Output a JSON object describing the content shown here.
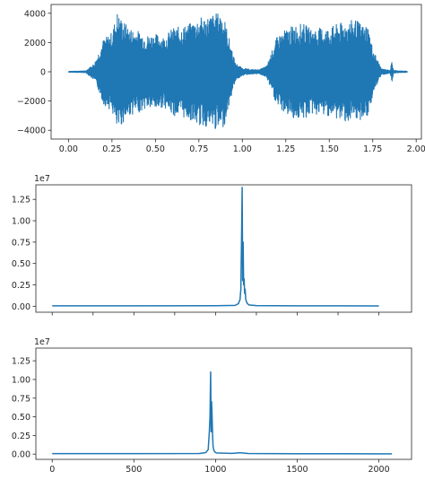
{
  "chart_data": [
    {
      "type": "line",
      "title": "",
      "xlabel": "",
      "ylabel": "",
      "xlim": [
        -0.1,
        2.03
      ],
      "ylim": [
        -4600,
        4600
      ],
      "xticks": [
        0.0,
        0.25,
        0.5,
        0.75,
        1.0,
        1.25,
        1.5,
        1.75,
        2.0
      ],
      "xtick_labels": [
        "0.00",
        "0.25",
        "0.50",
        "0.75",
        "1.00",
        "1.25",
        "1.50",
        "1.75",
        "2.00"
      ],
      "yticks": [
        4000,
        2000,
        0,
        -2000,
        -4000
      ],
      "ytick_labels": [
        "4000",
        "2000",
        "0",
        "−2000",
        "−4000"
      ],
      "series_color": "#1f77b4",
      "series": [
        {
          "x": [
            0.0,
            0.1,
            0.15,
            0.17,
            0.2,
            0.25,
            0.28,
            0.3,
            0.35,
            0.4,
            0.45,
            0.5,
            0.55,
            0.6,
            0.65,
            0.7,
            0.75,
            0.8,
            0.85,
            0.88,
            0.9,
            0.93,
            0.96,
            1.0,
            1.05,
            1.1,
            1.14,
            1.17,
            1.2,
            1.25,
            1.3,
            1.35,
            1.4,
            1.45,
            1.5,
            1.55,
            1.6,
            1.65,
            1.7,
            1.72,
            1.75,
            1.8,
            1.85,
            1.86,
            1.87,
            1.9,
            1.95
          ],
          "envelope": [
            30,
            60,
            600,
            1200,
            2200,
            2700,
            4100,
            3700,
            3000,
            2800,
            2500,
            2600,
            2400,
            3000,
            3100,
            3300,
            3700,
            3800,
            4000,
            4100,
            3500,
            2000,
            600,
            250,
            150,
            150,
            400,
            1400,
            2400,
            2900,
            3200,
            3300,
            2900,
            3000,
            3000,
            3300,
            3400,
            3600,
            3100,
            3300,
            1600,
            200,
            100,
            700,
            100,
            60,
            40
          ]
        }
      ]
    },
    {
      "type": "line",
      "title": "",
      "xlabel": "",
      "ylabel": "",
      "scale_offset": "1e7",
      "xlim": [
        -100,
        2200
      ],
      "ylim": [
        -0.07,
        1.42
      ],
      "xticks": [
        0,
        250,
        500,
        750,
        1000,
        1250,
        1500,
        1750,
        2000
      ],
      "xtick_labels": [],
      "yticks": [
        0.0,
        0.25,
        0.5,
        0.75,
        1.0,
        1.25
      ],
      "ytick_labels": [
        "0.00",
        "0.25",
        "0.50",
        "0.75",
        "1.00",
        "1.25"
      ],
      "series_color": "#1f77b4",
      "series": [
        {
          "x": [
            0,
            500,
            1000,
            1120,
            1140,
            1150,
            1155,
            1160,
            1163,
            1166,
            1169,
            1172,
            1175,
            1178,
            1181,
            1185,
            1190,
            1195,
            1205,
            1250,
            1500,
            2000
          ],
          "y": [
            0.005,
            0.005,
            0.006,
            0.01,
            0.03,
            0.08,
            0.2,
            0.9,
            1.39,
            0.3,
            0.75,
            0.25,
            0.32,
            0.15,
            0.2,
            0.08,
            0.05,
            0.03,
            0.015,
            0.008,
            0.005,
            0.004
          ]
        }
      ]
    },
    {
      "type": "line",
      "title": "",
      "xlabel": "",
      "ylabel": "",
      "scale_offset": "1e7",
      "xlim": [
        -100,
        2200
      ],
      "ylim": [
        -0.07,
        1.42
      ],
      "xticks": [
        0,
        500,
        1000,
        1500,
        2000
      ],
      "xtick_labels": [
        "0",
        "500",
        "1000",
        "1500",
        "2000"
      ],
      "yticks": [
        0.0,
        0.25,
        0.5,
        0.75,
        1.0,
        1.25
      ],
      "ytick_labels": [
        "0.00",
        "0.25",
        "0.50",
        "0.75",
        "1.00",
        "1.25"
      ],
      "series_color": "#1f77b4",
      "series": [
        {
          "x": [
            0,
            500,
            900,
            940,
            955,
            962,
            966,
            970,
            973,
            976,
            979,
            982,
            985,
            990,
            995,
            1005,
            1100,
            1150,
            1200,
            1500,
            2000,
            2080
          ],
          "y": [
            0.006,
            0.006,
            0.008,
            0.02,
            0.06,
            0.3,
            0.5,
            1.1,
            0.3,
            0.7,
            0.5,
            0.25,
            0.1,
            0.05,
            0.03,
            0.015,
            0.01,
            0.018,
            0.008,
            0.005,
            0.004,
            0.004
          ]
        }
      ]
    }
  ]
}
